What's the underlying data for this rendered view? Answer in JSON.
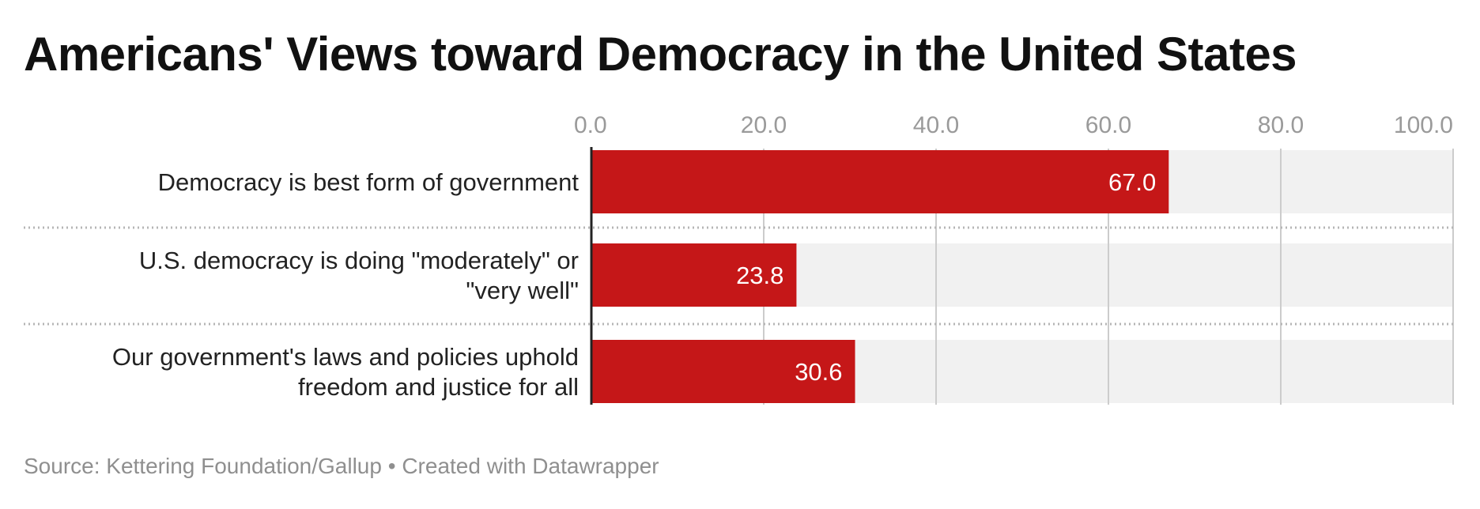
{
  "title": "Americans' Views toward Democracy in the United States",
  "footer": {
    "source": "Source: Kettering Foundation/Gallup",
    "separator": "•",
    "credit": "Created with Datawrapper"
  },
  "colors": {
    "bar": "#c51718",
    "track": "#f1f1f1",
    "grid": "#cccccc",
    "axis_text": "#9a9a9a",
    "label_text": "#222222",
    "value_text": "#ffffff"
  },
  "chart_data": {
    "type": "bar",
    "orientation": "horizontal",
    "title": "Americans' Views toward Democracy in the United States",
    "categories": [
      [
        "Democracy is best form of government"
      ],
      [
        "U.S. democracy is doing \"moderately\" or",
        "\"very well\""
      ],
      [
        "Our government's laws and policies uphold",
        "freedom and justice for all"
      ]
    ],
    "values": [
      67.0,
      23.8,
      30.6
    ],
    "value_labels": [
      "67.0",
      "23.8",
      "30.6"
    ],
    "xlim": [
      0,
      100
    ],
    "ticks": [
      0,
      20,
      40,
      60,
      80,
      100
    ],
    "tick_labels": [
      "0.0",
      "20.0",
      "40.0",
      "60.0",
      "80.0",
      "100.0"
    ],
    "axis_position": "top",
    "grid": true,
    "legend": "none"
  }
}
